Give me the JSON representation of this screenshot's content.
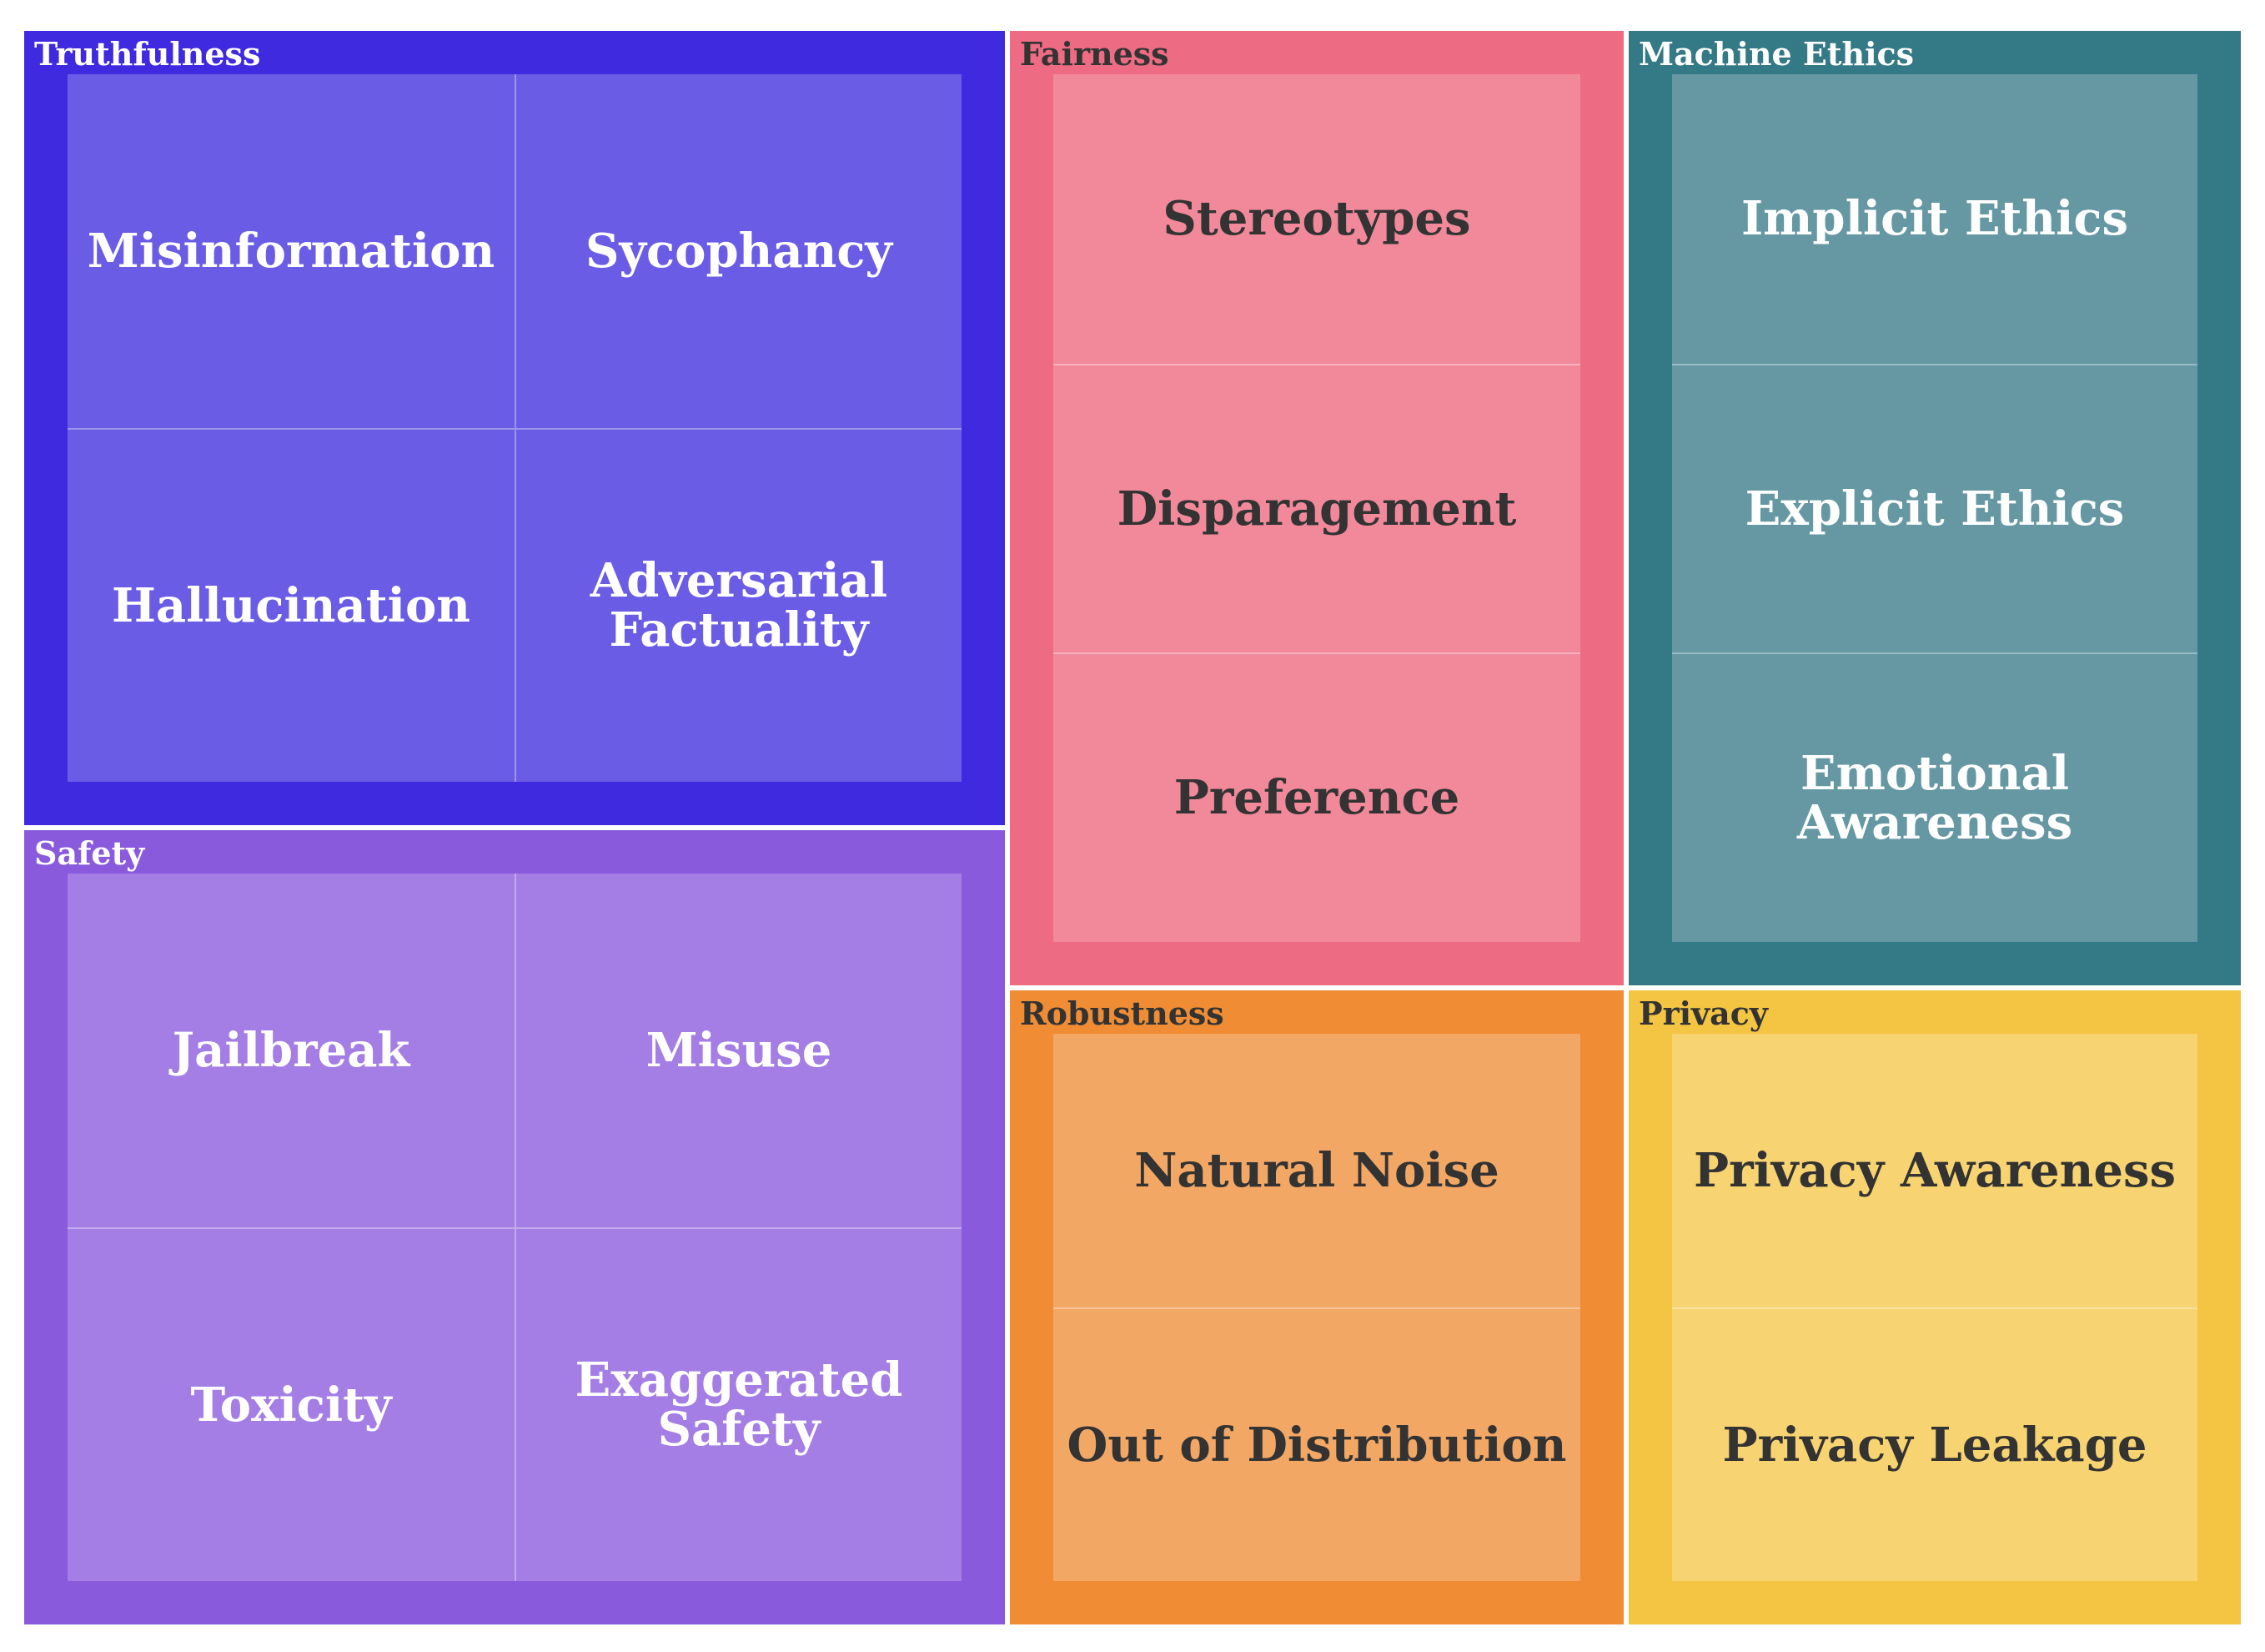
{
  "chart_data": {
    "type": "treemap",
    "colors": {
      "background": "#ffffff",
      "divider": "#ffffff"
    },
    "groups": [
      {
        "name": "Truthfulness",
        "color": "#3f2adf",
        "tile_color": "#6a5ce4",
        "text_color": "#ffffff",
        "children": [
          "Misinformation",
          "Sycophancy",
          "Hallucination",
          "Adversarial Factuality"
        ]
      },
      {
        "name": "Safety",
        "color": "#8a5add",
        "tile_color": "#a47ee4",
        "text_color": "#ffffff",
        "children": [
          "Jailbreak",
          "Misuse",
          "Toxicity",
          "Exaggerated Safety"
        ]
      },
      {
        "name": "Fairness",
        "color": "#ed6b83",
        "tile_color": "#f1899b",
        "text_color": "#333333",
        "children": [
          "Stereotypes",
          "Disparagement",
          "Preference"
        ]
      },
      {
        "name": "Machine Ethics",
        "color": "#347986",
        "tile_color": "#6598a3",
        "text_color": "#ffffff",
        "children": [
          "Implicit Ethics",
          "Explicit Ethics",
          "Emotional Awareness"
        ]
      },
      {
        "name": "Robustness",
        "color": "#ef8c34",
        "tile_color": "#f2a765",
        "text_color": "#333333",
        "children": [
          "Natural Noise",
          "Out of Distribution"
        ]
      },
      {
        "name": "Privacy",
        "color": "#f4c542",
        "tile_color": "#f7d471",
        "text_color": "#333333",
        "children": [
          "Privacy Awareness",
          "Privacy Leakage"
        ]
      }
    ]
  }
}
